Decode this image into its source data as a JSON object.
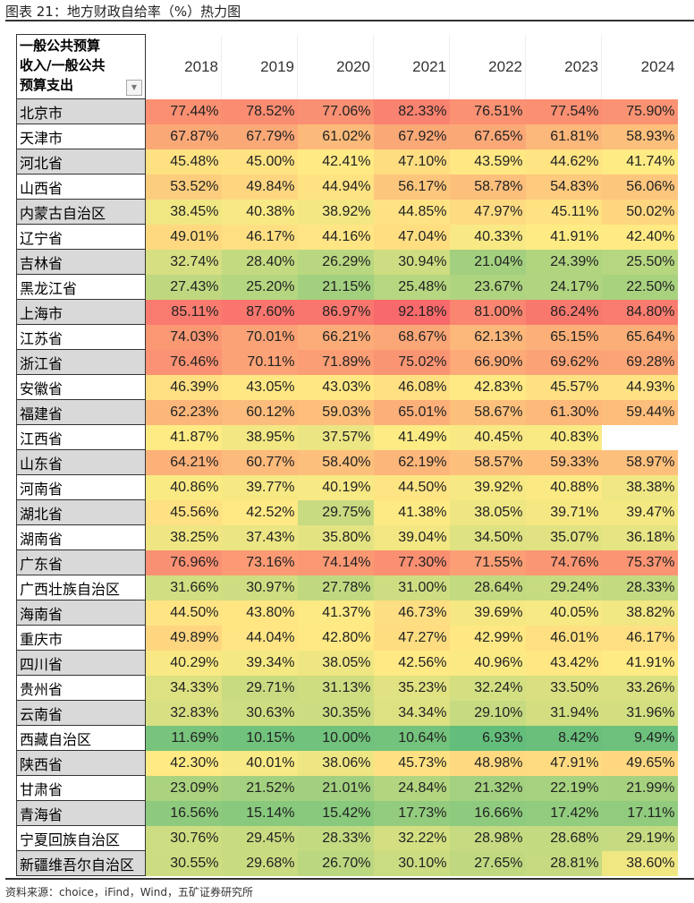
{
  "title": "图表 21：地方财政自给率（%）热力图",
  "source": "资料来源：choice，iFind，Wind，五矿证券研究所",
  "chart_data": {
    "type": "heatmap",
    "corner_header": "一般公共预算收入/一般公共预算支出",
    "corner_lines": [
      "一般公共预算",
      "收入/一般公共",
      "预算支出"
    ],
    "columns": [
      "2018",
      "2019",
      "2020",
      "2021",
      "2022",
      "2023",
      "2024"
    ],
    "color_scale": {
      "low": "#63be7b",
      "mid": "#ffeb84",
      "high": "#f8696b"
    },
    "rows": [
      {
        "name": "北京市",
        "values": [
          77.44,
          78.52,
          77.06,
          82.33,
          76.51,
          77.54,
          75.9
        ]
      },
      {
        "name": "天津市",
        "values": [
          67.87,
          67.79,
          61.02,
          67.92,
          67.65,
          61.81,
          58.93
        ]
      },
      {
        "name": "河北省",
        "values": [
          45.48,
          45.0,
          42.41,
          47.1,
          43.59,
          44.62,
          41.74
        ]
      },
      {
        "name": "山西省",
        "values": [
          53.52,
          49.84,
          44.94,
          56.17,
          58.78,
          54.83,
          56.06
        ]
      },
      {
        "name": "内蒙古自治区",
        "values": [
          38.45,
          40.38,
          38.92,
          44.85,
          47.97,
          45.11,
          50.02
        ]
      },
      {
        "name": "辽宁省",
        "values": [
          49.01,
          46.17,
          44.16,
          47.04,
          40.33,
          41.91,
          42.4
        ]
      },
      {
        "name": "吉林省",
        "values": [
          32.74,
          28.4,
          26.29,
          30.94,
          21.04,
          24.39,
          25.5
        ]
      },
      {
        "name": "黑龙江省",
        "values": [
          27.43,
          25.2,
          21.15,
          25.48,
          23.67,
          24.17,
          22.5
        ]
      },
      {
        "name": "上海市",
        "values": [
          85.11,
          87.6,
          86.97,
          92.18,
          81.0,
          86.24,
          84.8
        ]
      },
      {
        "name": "江苏省",
        "values": [
          74.03,
          70.01,
          66.21,
          68.67,
          62.13,
          65.15,
          65.64
        ]
      },
      {
        "name": "浙江省",
        "values": [
          76.46,
          70.11,
          71.89,
          75.02,
          66.9,
          69.62,
          69.28
        ]
      },
      {
        "name": "安徽省",
        "values": [
          46.39,
          43.05,
          43.03,
          46.08,
          42.83,
          45.57,
          44.93
        ]
      },
      {
        "name": "福建省",
        "values": [
          62.23,
          60.12,
          59.03,
          65.01,
          58.67,
          61.3,
          59.44
        ]
      },
      {
        "name": "江西省",
        "values": [
          41.87,
          38.95,
          37.57,
          41.49,
          40.45,
          40.83,
          null
        ]
      },
      {
        "name": "山东省",
        "values": [
          64.21,
          60.77,
          58.4,
          62.19,
          58.57,
          59.33,
          58.97
        ]
      },
      {
        "name": "河南省",
        "values": [
          40.86,
          39.77,
          40.19,
          44.5,
          39.92,
          40.88,
          38.38
        ]
      },
      {
        "name": "湖北省",
        "values": [
          45.56,
          42.52,
          29.75,
          41.38,
          38.05,
          39.71,
          39.47
        ]
      },
      {
        "name": "湖南省",
        "values": [
          38.25,
          37.43,
          35.8,
          39.04,
          34.5,
          35.07,
          36.18
        ]
      },
      {
        "name": "广东省",
        "values": [
          76.96,
          73.16,
          74.14,
          77.3,
          71.55,
          74.76,
          75.37
        ]
      },
      {
        "name": "广西壮族自治区",
        "values": [
          31.66,
          30.97,
          27.78,
          31.0,
          28.64,
          29.24,
          28.33
        ]
      },
      {
        "name": "海南省",
        "values": [
          44.5,
          43.8,
          41.37,
          46.73,
          39.69,
          40.05,
          38.82
        ]
      },
      {
        "name": "重庆市",
        "values": [
          49.89,
          44.04,
          42.8,
          47.27,
          42.99,
          46.01,
          46.17
        ]
      },
      {
        "name": "四川省",
        "values": [
          40.29,
          39.34,
          38.05,
          42.56,
          40.96,
          43.42,
          41.91
        ]
      },
      {
        "name": "贵州省",
        "values": [
          34.33,
          29.71,
          31.13,
          35.23,
          32.24,
          33.5,
          33.26
        ]
      },
      {
        "name": "云南省",
        "values": [
          32.83,
          30.63,
          30.35,
          34.34,
          29.1,
          31.94,
          31.96
        ]
      },
      {
        "name": "西藏自治区",
        "values": [
          11.69,
          10.15,
          10.0,
          10.64,
          6.93,
          8.42,
          9.49
        ]
      },
      {
        "name": "陕西省",
        "values": [
          42.3,
          40.01,
          38.06,
          45.73,
          48.98,
          47.91,
          49.65
        ]
      },
      {
        "name": "甘肃省",
        "values": [
          23.09,
          21.52,
          21.01,
          24.84,
          21.32,
          22.19,
          21.99
        ]
      },
      {
        "name": "青海省",
        "values": [
          16.56,
          15.14,
          15.42,
          17.73,
          16.66,
          17.42,
          17.11
        ]
      },
      {
        "name": "宁夏回族自治区",
        "values": [
          30.76,
          29.45,
          28.33,
          32.22,
          28.98,
          28.68,
          29.19
        ]
      },
      {
        "name": "新疆维吾尔自治区",
        "values": [
          30.55,
          29.68,
          26.7,
          30.1,
          27.65,
          28.81,
          38.6
        ]
      }
    ]
  }
}
